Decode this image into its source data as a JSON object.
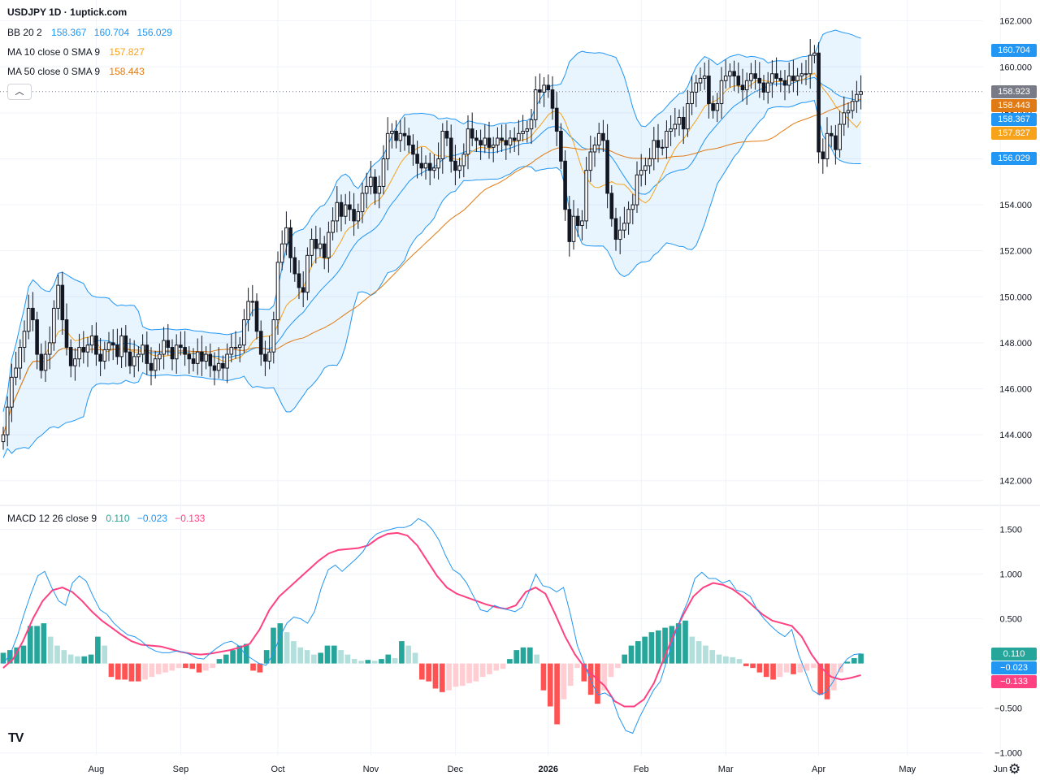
{
  "header": {
    "title": "USDJPY 1D · 1uptick.com"
  },
  "legend": {
    "bb": {
      "label": "BB 20 2",
      "values": [
        "158.367",
        "160.704",
        "156.029"
      ],
      "color": "#2196f3"
    },
    "ma10": {
      "label": "MA 10 close 0 SMA 9",
      "value": "157.827",
      "color": "#f7a21b"
    },
    "ma50": {
      "label": "MA 50 close 0 SMA 9",
      "value": "158.443",
      "color": "#e07a14"
    },
    "macd": {
      "label": "MACD 12 26 close 9",
      "values": [
        "0.110",
        "−0.023",
        "−0.133"
      ],
      "colors": [
        "#26a69a",
        "#2196f3",
        "#ff4081"
      ]
    }
  },
  "badges": {
    "price": [
      {
        "text": "160.704",
        "value": 160.704,
        "color": "#2196f3"
      },
      {
        "text": "158.923",
        "value": 158.923,
        "color": "#787b86"
      },
      {
        "text": "158.443",
        "value": 158.443,
        "color": "#e07a14"
      },
      {
        "text": "158.367",
        "value": 158.367,
        "color": "#2196f3"
      },
      {
        "text": "157.827",
        "value": 157.827,
        "color": "#f7a21b"
      },
      {
        "text": "156.029",
        "value": 156.029,
        "color": "#2196f3"
      }
    ],
    "macd": [
      {
        "text": "0.110",
        "value": 0.11,
        "color": "#26a69a"
      },
      {
        "text": "−0.023",
        "value": -0.023,
        "color": "#2196f3"
      },
      {
        "text": "−0.133",
        "value": -0.133,
        "color": "#ff4081"
      }
    ]
  },
  "chart_data": [
    {
      "type": "candlestick",
      "title": "USDJPY 1D",
      "ylim": [
        141,
        162.2
      ],
      "y_ticks": [
        "162.000",
        "160.000",
        "158.000",
        "156.000",
        "154.000",
        "152.000",
        "150.000",
        "148.000",
        "146.000",
        "144.000",
        "142.000"
      ],
      "y_tick_values": [
        162,
        160,
        158,
        156,
        154,
        152,
        150,
        148,
        146,
        144,
        142
      ],
      "x_ticks": [
        "Aug",
        "Sep",
        "Oct",
        "Nov",
        "Dec",
        "2026",
        "Feb",
        "Mar",
        "Apr",
        "May",
        "Jun"
      ],
      "x_tick_index": [
        22,
        42,
        65,
        87,
        107,
        129,
        151,
        171,
        193,
        214,
        236
      ],
      "last_price": 158.923,
      "close": [
        144.0,
        145.2,
        146.5,
        146.9,
        147.8,
        148.5,
        149.5,
        149.0,
        147.5,
        146.8,
        147.5,
        148.0,
        149.5,
        150.5,
        149.0,
        147.8,
        147.0,
        147.3,
        147.8,
        147.6,
        147.9,
        148.3,
        147.5,
        147.2,
        147.7,
        148.0,
        147.9,
        147.4,
        148.3,
        147.6,
        147.0,
        147.4,
        147.5,
        147.9,
        147.1,
        146.8,
        147.3,
        147.5,
        148.1,
        147.8,
        147.3,
        147.9,
        147.8,
        147.5,
        147.3,
        147.1,
        147.6,
        147.2,
        147.5,
        147.0,
        146.8,
        147.1,
        146.9,
        147.5,
        147.8,
        147.8,
        147.9,
        149.0,
        149.8,
        149.8,
        148.5,
        147.5,
        147.2,
        147.6,
        149.0,
        151.5,
        152.3,
        153.0,
        151.7,
        151.0,
        150.4,
        150.2,
        151.8,
        152.5,
        152.1,
        152.3,
        151.7,
        152.8,
        153.3,
        154.1,
        153.5,
        154.0,
        153.8,
        153.3,
        153.7,
        154.5,
        154.8,
        155.2,
        154.5,
        154.8,
        156.0,
        157.1,
        157.2,
        156.8,
        157.1,
        157.0,
        156.6,
        156.2,
        155.8,
        155.6,
        155.8,
        155.5,
        155.6,
        156.0,
        157.2,
        156.9,
        155.9,
        155.5,
        155.7,
        156.2,
        157.3,
        156.9,
        156.8,
        156.6,
        156.9,
        156.5,
        156.6,
        156.9,
        156.8,
        156.6,
        156.9,
        156.8,
        157.1,
        157.2,
        157.3,
        157.7,
        159.0,
        158.9,
        159.2,
        159.0,
        158.2,
        157.2,
        155.9,
        153.8,
        152.4,
        153.5,
        153.1,
        153.3,
        155.5,
        156.3,
        156.6,
        157.1,
        156.8,
        154.5,
        153.4,
        152.5,
        152.9,
        153.2,
        153.8,
        154.0,
        155.3,
        155.5,
        155.7,
        156.0,
        156.8,
        156.5,
        156.5,
        157.2,
        157.3,
        157.5,
        157.8,
        157.3,
        158.4,
        158.9,
        159.3,
        159.5,
        159.6,
        158.4,
        158.1,
        158.4,
        159.4,
        159.6,
        159.8,
        159.6,
        159.2,
        159.0,
        159.4,
        159.7,
        159.5,
        159.3,
        158.9,
        159.3,
        159.7,
        159.5,
        159.4,
        159.2,
        159.6,
        159.4,
        159.6,
        159.7,
        159.7,
        160.5,
        160.6,
        156.3,
        156.0,
        157.1,
        157.0,
        156.4,
        157.5,
        158.0,
        158.1,
        158.5,
        158.8,
        158.923
      ]
    },
    {
      "type": "line+bar",
      "title": "MACD 12 26 close 9",
      "ylim": [
        -1.03,
        1.65
      ],
      "y_ticks": [
        "1.500",
        "1.000",
        "0.500",
        "−0.500",
        "−1.000"
      ],
      "y_tick_values": [
        1.5,
        1.0,
        0.5,
        -0.5,
        -1.0
      ],
      "series": [
        {
          "name": "MACD",
          "values": [
            0.0,
            0.1,
            0.3,
            0.55,
            0.78,
            0.98,
            1.03,
            0.85,
            0.7,
            0.65,
            0.9,
            0.98,
            0.92,
            0.75,
            0.6,
            0.55,
            0.45,
            0.38,
            0.32,
            0.3,
            0.25,
            0.18,
            0.14,
            0.12,
            0.12,
            0.14,
            0.13,
            0.1,
            0.06,
            0.05,
            0.12,
            0.18,
            0.23,
            0.25,
            0.2,
            0.1,
            0.05,
            0.0,
            -0.02,
            0.1,
            0.3,
            0.45,
            0.52,
            0.5,
            0.45,
            0.58,
            0.85,
            1.05,
            1.1,
            1.03,
            1.1,
            1.17,
            1.25,
            1.38,
            1.45,
            1.48,
            1.5,
            1.52,
            1.52,
            1.55,
            1.62,
            1.58,
            1.5,
            1.38,
            1.2,
            1.05,
            1.0,
            0.9,
            0.75,
            0.6,
            0.58,
            0.65,
            0.62,
            0.6,
            0.58,
            0.63,
            0.8,
            1.0,
            0.87,
            0.85,
            0.8,
            0.85,
            0.55,
            0.2,
            0.0,
            -0.2,
            -0.35,
            -0.33,
            -0.38,
            -0.6,
            -0.75,
            -0.78,
            -0.6,
            -0.45,
            -0.3,
            -0.2,
            0.05,
            0.3,
            0.52,
            0.7,
            0.95,
            1.02,
            0.95,
            0.95,
            0.9,
            0.93,
            0.82,
            0.8,
            0.75,
            0.6,
            0.5,
            0.42,
            0.35,
            0.3,
            0.38,
            0.1,
            -0.1,
            -0.3,
            -0.35,
            -0.32,
            -0.2,
            -0.05,
            0.05,
            0.1,
            0.11
          ]
        },
        {
          "name": "Signal",
          "values": [
            -0.05,
            0.05,
            0.25,
            0.5,
            0.7,
            0.82,
            0.85,
            0.8,
            0.7,
            0.58,
            0.48,
            0.4,
            0.32,
            0.25,
            0.21,
            0.2,
            0.19,
            0.16,
            0.13,
            0.11,
            0.1,
            0.11,
            0.13,
            0.15,
            0.18,
            0.22,
            0.38,
            0.6,
            0.75,
            0.85,
            0.95,
            1.05,
            1.15,
            1.23,
            1.27,
            1.28,
            1.29,
            1.32,
            1.4,
            1.45,
            1.46,
            1.43,
            1.32,
            1.15,
            0.98,
            0.85,
            0.78,
            0.74,
            0.7,
            0.66,
            0.63,
            0.61,
            0.65,
            0.8,
            0.85,
            0.78,
            0.55,
            0.3,
            0.1,
            -0.05,
            -0.15,
            -0.25,
            -0.42,
            -0.48,
            -0.48,
            -0.4,
            -0.22,
            0.05,
            0.32,
            0.55,
            0.75,
            0.85,
            0.9,
            0.88,
            0.83,
            0.75,
            0.65,
            0.55,
            0.48,
            0.45,
            0.42,
            0.3,
            0.1,
            -0.05,
            -0.15,
            -0.18,
            -0.16,
            -0.13
          ]
        }
      ],
      "histogram": [
        0.12,
        0.15,
        0.18,
        0.2,
        0.42,
        0.42,
        0.45,
        0.3,
        0.2,
        0.15,
        0.1,
        0.08,
        0.08,
        0.1,
        0.3,
        0.2,
        -0.15,
        -0.18,
        -0.18,
        -0.2,
        -0.2,
        -0.18,
        -0.15,
        -0.12,
        -0.1,
        -0.08,
        -0.05,
        -0.05,
        -0.06,
        -0.1,
        -0.08,
        -0.05,
        0.05,
        0.1,
        0.15,
        0.2,
        0.22,
        -0.08,
        -0.1,
        0.15,
        0.4,
        0.45,
        0.35,
        0.25,
        0.18,
        0.15,
        0.1,
        0.12,
        0.2,
        0.2,
        0.15,
        0.1,
        0.05,
        0.03,
        0.04,
        0.03,
        0.05,
        0.1,
        0.06,
        0.25,
        0.2,
        0.12,
        -0.18,
        -0.2,
        -0.28,
        -0.32,
        -0.3,
        -0.26,
        -0.25,
        -0.22,
        -0.2,
        -0.15,
        -0.12,
        -0.08,
        -0.06,
        0.05,
        0.15,
        0.18,
        0.18,
        0.1,
        -0.3,
        -0.48,
        -0.68,
        -0.4,
        -0.25,
        -0.05,
        -0.2,
        -0.35,
        -0.45,
        -0.3,
        -0.15,
        -0.05,
        0.1,
        0.2,
        0.25,
        0.3,
        0.35,
        0.37,
        0.4,
        0.42,
        0.45,
        0.48,
        0.3,
        0.25,
        0.2,
        0.15,
        0.1,
        0.08,
        0.07,
        0.05,
        -0.03,
        -0.05,
        -0.1,
        -0.15,
        -0.18,
        -0.15,
        -0.1,
        -0.12,
        -0.1,
        -0.08,
        -0.05,
        -0.35,
        -0.4,
        -0.3,
        -0.1,
        0.02,
        0.06,
        0.11
      ]
    }
  ]
}
